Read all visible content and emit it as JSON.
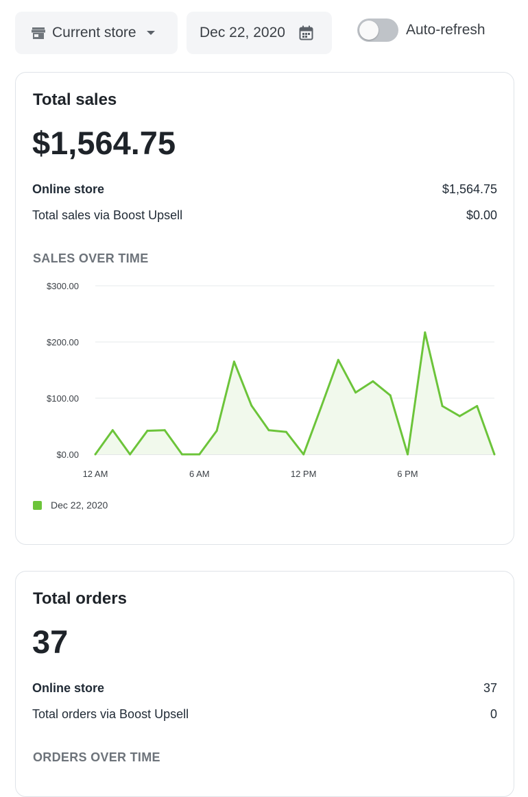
{
  "toolbar": {
    "store_label": "Current store",
    "date_label": "Dec 22, 2020",
    "auto_refresh_label": "Auto-refresh",
    "auto_refresh_on": false
  },
  "sales_card": {
    "title": "Total sales",
    "total": "$1,564.75",
    "rows": [
      {
        "label": "Online store",
        "value": "$1,564.75"
      },
      {
        "label": "Total sales via Boost Upsell",
        "value": "$0.00"
      }
    ],
    "section_title": "SALES OVER TIME",
    "legend_label": "Dec 22, 2020"
  },
  "orders_card": {
    "title": "Total orders",
    "total": "37",
    "rows": [
      {
        "label": "Online store",
        "value": "37"
      },
      {
        "label": "Total orders via Boost Upsell",
        "value": "0"
      }
    ],
    "section_title": "ORDERS OVER TIME"
  },
  "colors": {
    "series": "#6cc43a",
    "series_fill": "#f1f9ec",
    "grid": "#e6e8eb"
  },
  "chart_data": {
    "type": "line",
    "x": [
      0,
      1,
      2,
      3,
      4,
      5,
      6,
      7,
      8,
      9,
      10,
      11,
      12,
      13,
      14,
      15,
      16,
      17,
      18,
      19,
      20,
      21,
      22,
      23
    ],
    "xticks": [
      {
        "x": 0,
        "label": "12 AM"
      },
      {
        "x": 6,
        "label": "6 AM"
      },
      {
        "x": 12,
        "label": "12 PM"
      },
      {
        "x": 18,
        "label": "6 PM"
      }
    ],
    "yticks": [
      {
        "y": 0,
        "label": "$0.00"
      },
      {
        "y": 100,
        "label": "$100.00"
      },
      {
        "y": 200,
        "label": "$200.00"
      },
      {
        "y": 300,
        "label": "$300.00"
      }
    ],
    "ylim": [
      0,
      300
    ],
    "xlim": [
      0,
      23
    ],
    "series": [
      {
        "name": "Dec 22, 2020",
        "values": [
          0,
          43,
          0,
          42,
          43,
          0,
          0,
          42,
          165,
          87,
          43,
          40,
          0,
          83,
          168,
          110,
          130,
          105,
          0,
          217,
          86,
          68,
          86,
          0
        ]
      }
    ],
    "grid": true,
    "legend": "bottom-left"
  }
}
